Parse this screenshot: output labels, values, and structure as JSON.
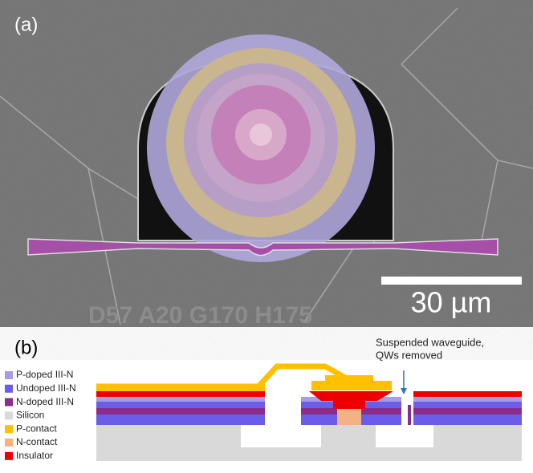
{
  "panel_a": {
    "label": "(a)",
    "scale_bar": "30 µm"
  },
  "panel_b": {
    "label": "(b)",
    "annotation": [
      "Suspended waveguide,",
      "QWs removed"
    ],
    "legend": [
      "P-doped III-N",
      "Undoped III-N",
      "N-doped III-N",
      "Silicon",
      "P-contact",
      "N-contact",
      "Insulator"
    ]
  }
}
